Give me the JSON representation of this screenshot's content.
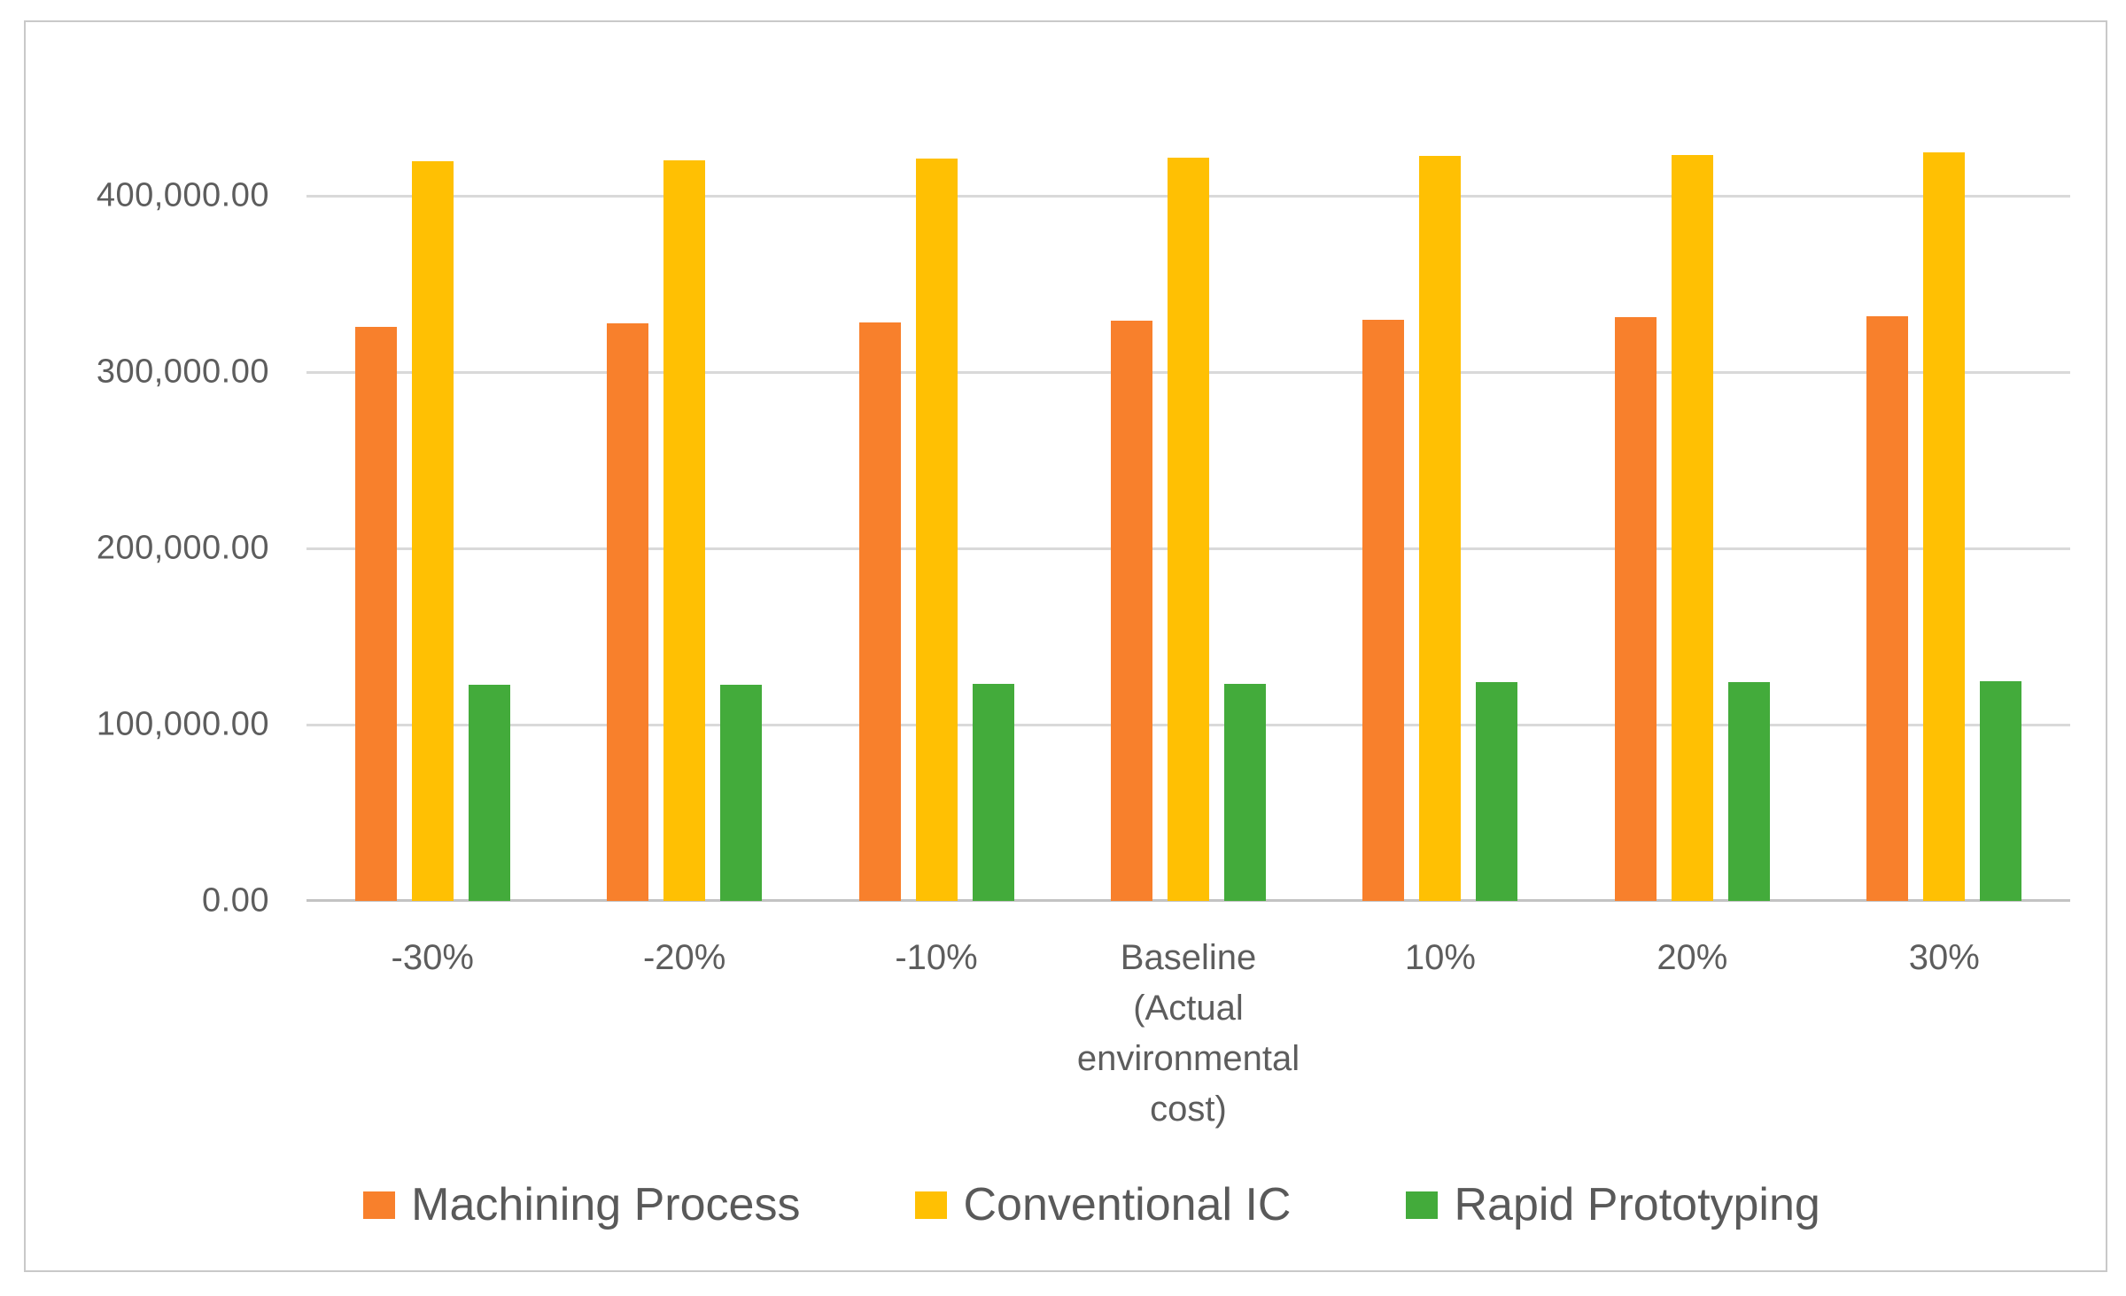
{
  "chart_data": {
    "type": "bar",
    "title": "",
    "xlabel": "",
    "ylabel": "",
    "grid": true,
    "legend_position": "bottom",
    "ylim": [
      0,
      450000
    ],
    "yticks": [
      {
        "value": 0,
        "label": "0.00"
      },
      {
        "value": 100000,
        "label": "100,000.00"
      },
      {
        "value": 200000,
        "label": "200,000.00"
      },
      {
        "value": 300000,
        "label": "300,000.00"
      },
      {
        "value": 400000,
        "label": "400,000.00"
      }
    ],
    "categories": [
      "-30%",
      "-20%",
      "-10%",
      "Baseline\n(Actual\nenvironmental\ncost)",
      "10%",
      "20%",
      "30%"
    ],
    "series": [
      {
        "name": "Machining Process",
        "color": "#f8802c",
        "values": [
          326000,
          328000,
          328500,
          329500,
          330000,
          331500,
          332000
        ]
      },
      {
        "name": "Conventional IC",
        "color": "#ffc003",
        "values": [
          420000,
          420500,
          421500,
          422000,
          423000,
          423500,
          425000
        ]
      },
      {
        "name": "Rapid Prototyping",
        "color": "#43ab3b",
        "values": [
          122500,
          122800,
          123000,
          123200,
          124000,
          124300,
          124500
        ]
      }
    ]
  },
  "style_colors": {
    "gridline": "#d9d9d9",
    "axis_line": "#c3c3c3",
    "tick_text": "#5d5d5d",
    "legend_text": "#595959",
    "frame_border": "#c9c9c9"
  }
}
